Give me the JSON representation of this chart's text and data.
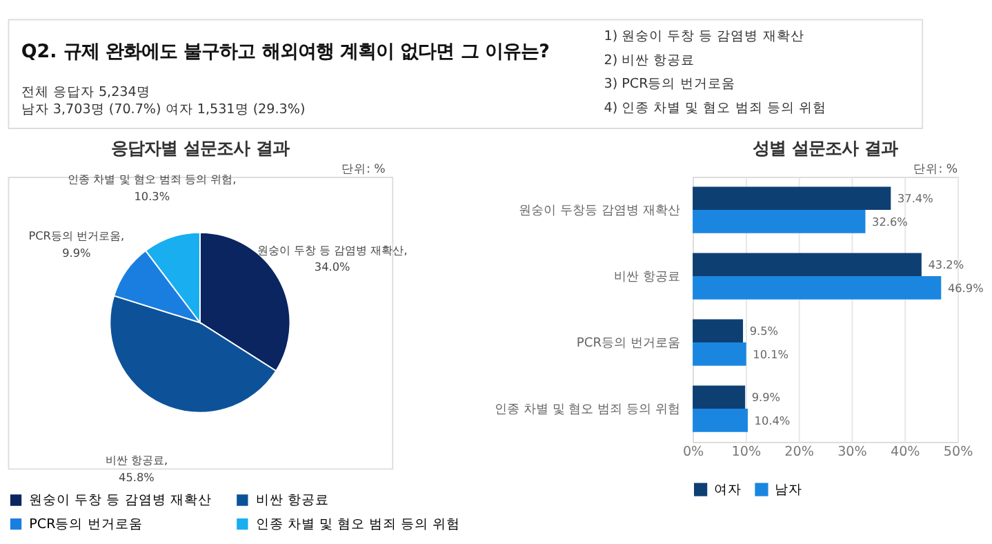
{
  "chart_data": [
    {
      "type": "other",
      "title": "Q2. 규제 완화에도 불구하고 해외여행 계획이 없다면 그 이유는?",
      "annotations": [
        "전체 응답자 5,234명",
        "남자 3,703명 (70.7%) 여자 1,531명 (29.3%)",
        "1) 원숭이 두창 등 감염병 재확산",
        "2) 비싼 항공료",
        "3) PCR등의 번거로움",
        "4) 인종 차별 및 혐오 범죄 등의 위험"
      ]
    },
    {
      "type": "pie",
      "title": "응답자별 설문조사 결과",
      "categories": [
        "원숭이 두창 등 감염병 재확산",
        "비싼 항공료",
        "PCR등의 번거로움",
        "인종 차별 및 혐오 범죄 등의 위험"
      ],
      "values": [
        34.0,
        45.8,
        9.9,
        10.3
      ],
      "colors": [
        "#0a2560",
        "#0d5299",
        "#1a7ee0",
        "#18aef0"
      ],
      "value_labels": [
        "원숭이 두창 등 감염병 재확산,\n34.0%",
        "비싼 항공료,\n45.8%",
        "PCR등의 번거로움,\n9.9%",
        "인종 차별 및 혐오 범죄 등의 위험,\n10.3%"
      ],
      "legend": "bottom",
      "annotations": [
        "단위: %"
      ]
    },
    {
      "type": "bar",
      "orientation": "horizontal",
      "title": "성별 설문조사 결과",
      "categories": [
        "원숭이 두창등 감염병 재확산",
        "비싼 항공료",
        "PCR등의 번거로움",
        "인종 차별 및 혐오 범죄 등의 위험"
      ],
      "series": [
        {
          "name": "여자",
          "color": "#0e3f73",
          "values": [
            37.4,
            43.2,
            9.5,
            9.9
          ],
          "value_labels": [
            "37.4%",
            "43.2%",
            "9.5%",
            "9.9%"
          ]
        },
        {
          "name": "남자",
          "color": "#1a86e0",
          "values": [
            32.6,
            46.9,
            10.1,
            10.4
          ],
          "value_labels": [
            "32.6%",
            "46.9%",
            "10.1%",
            "10.4%"
          ]
        }
      ],
      "xlim": [
        0,
        50
      ],
      "xticks": [
        {
          "value": 0,
          "label": "0%"
        },
        {
          "value": 10,
          "label": "10%"
        },
        {
          "value": 20,
          "label": "20%"
        },
        {
          "value": 30,
          "label": "30%"
        },
        {
          "value": 40,
          "label": "40%"
        },
        {
          "value": 50,
          "label": "50%"
        }
      ],
      "grid": "x",
      "legend": "bottom",
      "annotations": [
        "단위: %"
      ]
    }
  ]
}
